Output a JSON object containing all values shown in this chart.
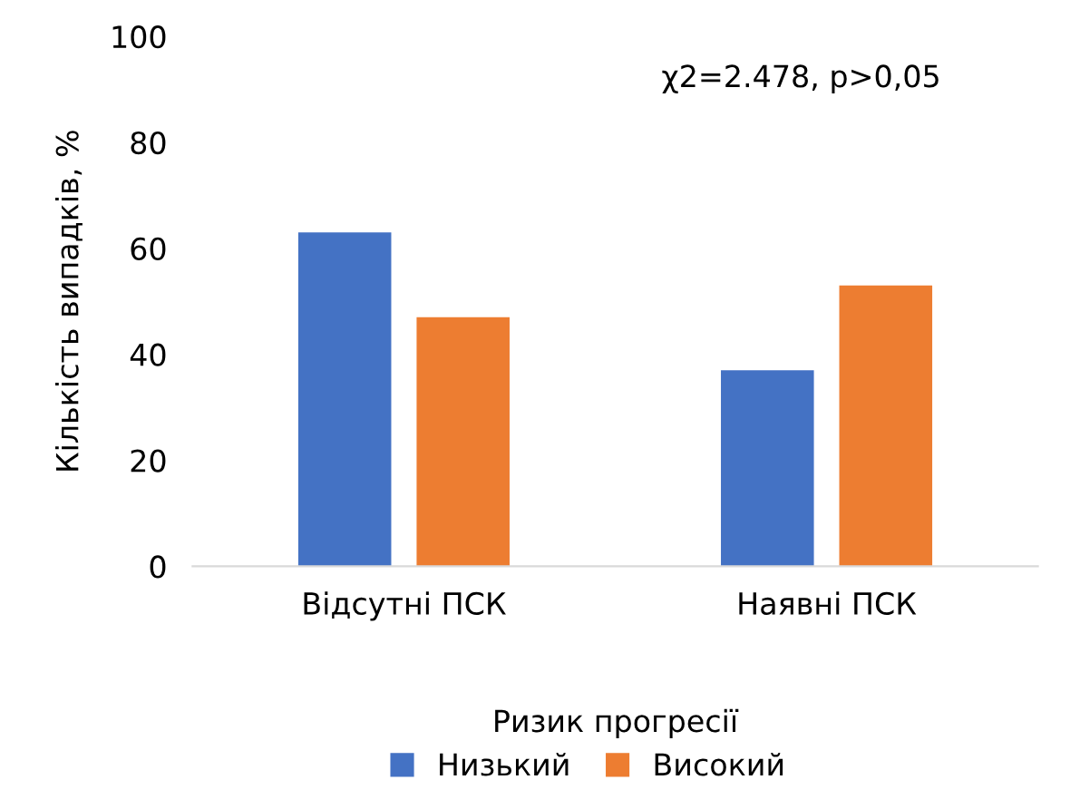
{
  "chart_data": {
    "type": "bar",
    "categories": [
      "Відсутні ПСК",
      "Наявні ПСК"
    ],
    "series": [
      {
        "name": "Низький",
        "color": "#4472c4",
        "values": [
          63,
          37
        ]
      },
      {
        "name": "Високий",
        "color": "#ed7d31",
        "values": [
          47,
          53
        ]
      }
    ],
    "xlabel": "Ризик прогресії",
    "ylabel": "Кількість випадків, %",
    "ylim": [
      0,
      100
    ],
    "yticks": [
      0,
      20,
      40,
      60,
      80,
      100
    ],
    "grid": false,
    "legend": "bottom",
    "annotations": [
      "χ2=2.478, p>0,05"
    ]
  }
}
